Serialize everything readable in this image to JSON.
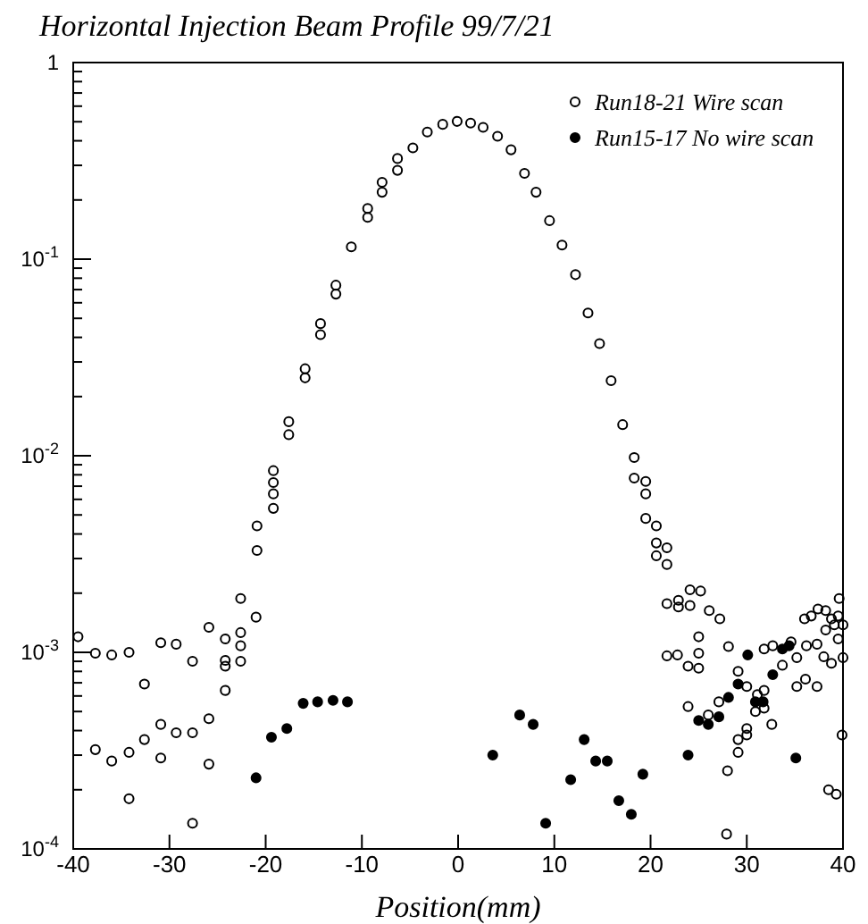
{
  "chart_data": {
    "type": "scatter",
    "title": "Horizontal Injection Beam Profile 99/7/21",
    "xlabel": "Position(mm)",
    "log": "y",
    "grid": false,
    "legend": "top right",
    "marker": "circle",
    "xlim": [
      -40,
      40
    ],
    "xticks": [
      -40,
      -30,
      -20,
      -10,
      0,
      10,
      20,
      30,
      40
    ],
    "ylim": [
      0.0001,
      1
    ],
    "yticks": [
      {
        "value": 0.0001,
        "label": "10$^{-4}$"
      },
      {
        "value": 0.001,
        "label": "10$^{-3}$"
      },
      {
        "value": 0.01,
        "label": "10$^{-2}$"
      },
      {
        "value": 0.1,
        "label": "10$^{-1}$"
      },
      {
        "value": 1,
        "label": "1"
      }
    ],
    "series": [
      {
        "name": "Run18-21 Wire scan",
        "color": "#000000",
        "x": [
          -39.5,
          -37.7,
          -36,
          -34.2,
          -30.9,
          -29.3,
          -27.6,
          -25.9,
          -24.2,
          -24.2,
          -24.2,
          -22.6,
          -22.6,
          -22.6,
          -22.6,
          -21,
          -32.6,
          -24.2,
          -25.9,
          -30.9,
          -32.6,
          -29.3,
          -27.6,
          -37.7,
          -36,
          -34.2,
          -30.9,
          -25.9,
          -34.2,
          -27.6,
          -20.9,
          -20.9,
          -19.2,
          -19.2,
          -19.2,
          -19.2,
          -17.6,
          -17.6,
          -15.9,
          -15.9,
          -14.3,
          -14.3,
          -12.7,
          -12.7,
          -11.1,
          -9.4,
          -9.4,
          -7.9,
          -7.9,
          -6.3,
          -6.3,
          -4.7,
          -3.2,
          -1.6,
          -0.1,
          1.3,
          2.6,
          4.1,
          5.5,
          6.9,
          8.1,
          9.5,
          10.8,
          12.2,
          13.5,
          14.7,
          15.9,
          17.1,
          18.3,
          18.3,
          19.5,
          19.5,
          19.5,
          20.6,
          20.6,
          20.6,
          21.7,
          21.7,
          21.7,
          22.9,
          22.9,
          24.1,
          25.2,
          24.1,
          26.1,
          27.2,
          21.7,
          22.8,
          25,
          25,
          23.9,
          25,
          28.1,
          23.9,
          26,
          27.1,
          29.1,
          30,
          31.1,
          31.8,
          31.8,
          30.9,
          30,
          30,
          29.1,
          29.1,
          32.6,
          28,
          27.9,
          31.8,
          32.7,
          33.7,
          34.6,
          35.2,
          36.2,
          35.2,
          36.1,
          37.3,
          36,
          36.7,
          37.4,
          38.2,
          38.8,
          39.5,
          39.6,
          40,
          39.1,
          38.2,
          39.5,
          37.3,
          38,
          38.8,
          40,
          38.5,
          39.3,
          39.9
        ],
        "values": [
          0.0012,
          0.00099,
          0.00097,
          0.001,
          0.00112,
          0.0011,
          0.0009,
          0.00134,
          0.00117,
          0.00091,
          0.00085,
          0.00188,
          0.00126,
          0.00108,
          0.0009,
          0.00151,
          0.00069,
          0.00064,
          0.00046,
          0.00043,
          0.00036,
          0.00039,
          0.00039,
          0.00032,
          0.00028,
          0.00031,
          0.00029,
          0.00027,
          0.00018,
          0.000135,
          0.0033,
          0.0044,
          0.0054,
          0.0064,
          0.0073,
          0.0084,
          0.0128,
          0.0149,
          0.0249,
          0.0277,
          0.0413,
          0.047,
          0.0664,
          0.0737,
          0.1155,
          0.163,
          0.181,
          0.219,
          0.246,
          0.283,
          0.325,
          0.368,
          0.443,
          0.485,
          0.502,
          0.492,
          0.468,
          0.422,
          0.36,
          0.273,
          0.219,
          0.157,
          0.118,
          0.0834,
          0.0532,
          0.0372,
          0.0241,
          0.0144,
          0.0098,
          0.0077,
          0.0074,
          0.0064,
          0.0048,
          0.0044,
          0.0036,
          0.0031,
          0.0034,
          0.0028,
          0.00177,
          0.00184,
          0.0017,
          0.00208,
          0.00205,
          0.00173,
          0.00163,
          0.00148,
          0.00096,
          0.00097,
          0.0012,
          0.00099,
          0.00085,
          0.00083,
          0.00107,
          0.00053,
          0.00048,
          0.00056,
          0.0008,
          0.00067,
          0.00061,
          0.00064,
          0.00052,
          0.0005,
          0.00041,
          0.00038,
          0.00036,
          0.00031,
          0.00043,
          0.00025,
          0.000119,
          0.00104,
          0.00108,
          0.00086,
          0.00113,
          0.00094,
          0.00108,
          0.00067,
          0.00073,
          0.00067,
          0.00148,
          0.00153,
          0.00166,
          0.00163,
          0.00148,
          0.00153,
          0.00188,
          0.00138,
          0.00138,
          0.0013,
          0.00117,
          0.0011,
          0.00095,
          0.00088,
          0.00094,
          0.0002,
          0.00019,
          0.00038
        ]
      },
      {
        "name": "Run15-17 No wire scan",
        "color": "#000000",
        "x": [
          -21,
          -19.4,
          -17.8,
          -16.1,
          -14.6,
          -13,
          -11.5,
          3.6,
          6.4,
          7.8,
          9.1,
          11.7,
          13.1,
          14.3,
          15.5,
          16.7,
          18,
          19.2,
          23.9,
          25,
          26,
          27.1,
          28.1,
          29.1,
          30.1,
          30.9,
          31.7,
          32.7,
          33.7,
          34.4,
          35.1
        ],
        "values": [
          0.00023,
          0.00037,
          0.00041,
          0.00055,
          0.00056,
          0.00057,
          0.00056,
          0.0003,
          0.00048,
          0.00043,
          0.000135,
          0.000225,
          0.00036,
          0.00028,
          0.00028,
          0.000176,
          0.00015,
          0.00024,
          0.0003,
          0.00045,
          0.00043,
          0.00047,
          0.00059,
          0.00069,
          0.00097,
          0.00056,
          0.00056,
          0.00077,
          0.00104,
          0.00108,
          0.00029
        ]
      }
    ]
  }
}
